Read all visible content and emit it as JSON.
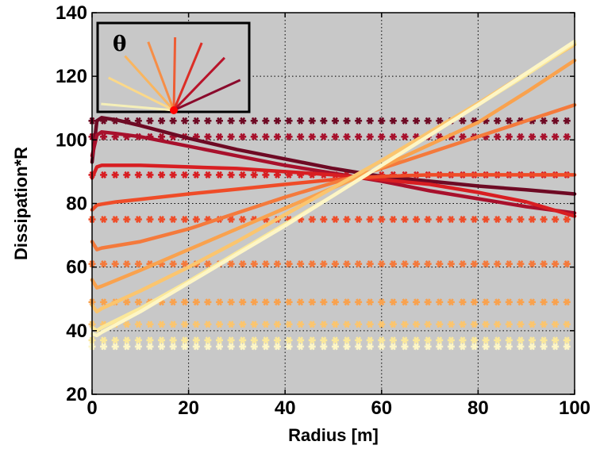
{
  "chart_data": {
    "type": "line",
    "xlabel": "Radius [m]",
    "ylabel": "Dissipation*R",
    "xlim": [
      0,
      100
    ],
    "ylim": [
      20,
      140
    ],
    "xticks": [
      0,
      20,
      40,
      60,
      80,
      100
    ],
    "yticks": [
      20,
      40,
      60,
      80,
      100,
      120,
      140
    ],
    "grid": true,
    "background": "#c8c8c8",
    "inset": {
      "label": "θ",
      "placement": "top-left",
      "ray_colors": [
        "#f5efb8",
        "#fbd889",
        "#f9b55f",
        "#f68e47",
        "#ee5d34",
        "#dc2e26",
        "#b8132a",
        "#8a0a2c"
      ],
      "marker_color": "#ff0000"
    },
    "series": [
      {
        "color": "#6e0a24",
        "constant": 106,
        "x": [
          0,
          1,
          2,
          5,
          10,
          20,
          30,
          40,
          50,
          60,
          70,
          80,
          90,
          100
        ],
        "values": [
          93,
          106,
          107,
          106.3,
          104.5,
          100.5,
          97,
          94,
          91,
          88.5,
          87,
          85.5,
          84.3,
          83
        ]
      },
      {
        "color": "#a8102c",
        "constant": 101,
        "x": [
          0,
          1,
          2,
          5,
          10,
          20,
          30,
          40,
          50,
          60,
          70,
          80,
          90,
          100
        ],
        "values": [
          95,
          101.5,
          102.5,
          102,
          101,
          98,
          95,
          92,
          89.5,
          87,
          84,
          81.5,
          79,
          77
        ]
      },
      {
        "color": "#d81e22",
        "constant": 89,
        "x": [
          0,
          1,
          2,
          5,
          10,
          20,
          30,
          40,
          50,
          60,
          70,
          80,
          90,
          100
        ],
        "values": [
          88,
          91.5,
          92,
          92,
          92,
          91.5,
          91,
          90,
          89,
          87.5,
          86,
          83.5,
          80.5,
          76
        ]
      },
      {
        "color": "#ef4c28",
        "constant": 75,
        "x": [
          0,
          1,
          2,
          5,
          10,
          20,
          30,
          40,
          50,
          60,
          70,
          80,
          90,
          100
        ],
        "values": [
          78,
          79.5,
          79.8,
          80.5,
          81.3,
          83,
          84.5,
          86,
          87.5,
          88.5,
          89,
          89,
          89,
          89
        ]
      },
      {
        "color": "#f47a3c",
        "constant": 61,
        "x": [
          0,
          1,
          2,
          10,
          20,
          30,
          40,
          50,
          60,
          70,
          80,
          90,
          100
        ],
        "values": [
          68,
          65.5,
          66,
          68,
          72,
          77,
          82,
          86.5,
          91,
          96,
          101,
          106,
          111
        ]
      },
      {
        "color": "#f9a24e",
        "constant": 49,
        "x": [
          0,
          1,
          2,
          10,
          20,
          30,
          40,
          50,
          60,
          70,
          80,
          90,
          100
        ],
        "values": [
          56,
          53.5,
          54,
          59,
          65.5,
          72,
          78.5,
          85,
          91.5,
          98.5,
          105.5,
          115,
          125
        ]
      },
      {
        "color": "#fbc56e",
        "constant": 42,
        "x": [
          0,
          1,
          2,
          10,
          20,
          30,
          40,
          50,
          60,
          70,
          80,
          90,
          100
        ],
        "values": [
          48,
          46,
          47,
          52.5,
          60,
          68,
          76.5,
          85,
          93.5,
          102.5,
          111.5,
          121,
          130
        ]
      },
      {
        "color": "#fbe89a",
        "constant": 37,
        "x": [
          0,
          1,
          2,
          10,
          20,
          30,
          40,
          50,
          60,
          70,
          80,
          90,
          100
        ],
        "values": [
          41,
          40,
          41,
          47,
          55.5,
          64.5,
          73.5,
          82.5,
          92,
          101.5,
          111,
          120.5,
          130.5
        ]
      },
      {
        "color": "#fdf6c6",
        "constant": 35,
        "x": [
          0,
          1,
          2,
          10,
          20,
          30,
          40,
          50,
          60,
          70,
          80,
          90,
          100
        ],
        "values": [
          39,
          38.5,
          39.5,
          46,
          55,
          64,
          73,
          82.5,
          92,
          101.5,
          111,
          121,
          131
        ]
      }
    ]
  }
}
